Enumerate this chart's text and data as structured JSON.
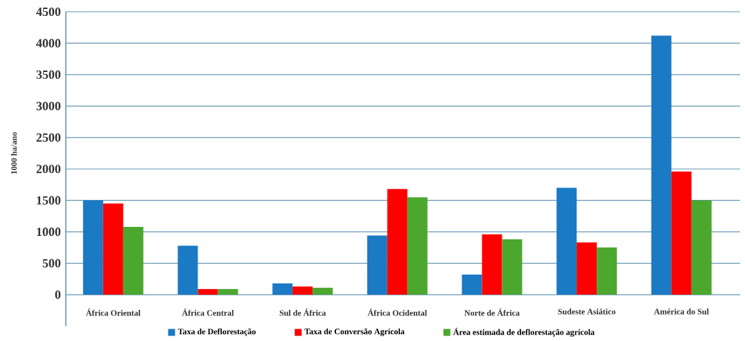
{
  "chart_data": {
    "type": "bar",
    "ylabel": "1000 ha/ano",
    "categories": [
      "África Oriental",
      "África Central",
      "Sul de África",
      "África Ocidental",
      "Norte de África",
      "Sudeste Asiático",
      "América do Sul"
    ],
    "series": [
      {
        "name": "Taxa de Deflorestação",
        "color": "#1a7ac4",
        "values": [
          1500,
          780,
          180,
          940,
          320,
          1700,
          4120
        ]
      },
      {
        "name": "Taxa de Conversão Agrícola",
        "color": "#ff0000",
        "values": [
          1450,
          90,
          130,
          1680,
          960,
          830,
          1960
        ]
      },
      {
        "name": "Área estimada de deflorestação agrícola",
        "color": "#4ca72f",
        "values": [
          1080,
          90,
          110,
          1550,
          880,
          750,
          1500
        ]
      }
    ],
    "ylim": [
      -500,
      4500
    ],
    "yticks": [
      0,
      500,
      1000,
      1500,
      2000,
      2500,
      3000,
      3500,
      4000,
      4500
    ],
    "grid": "y",
    "legend": "bottom"
  }
}
